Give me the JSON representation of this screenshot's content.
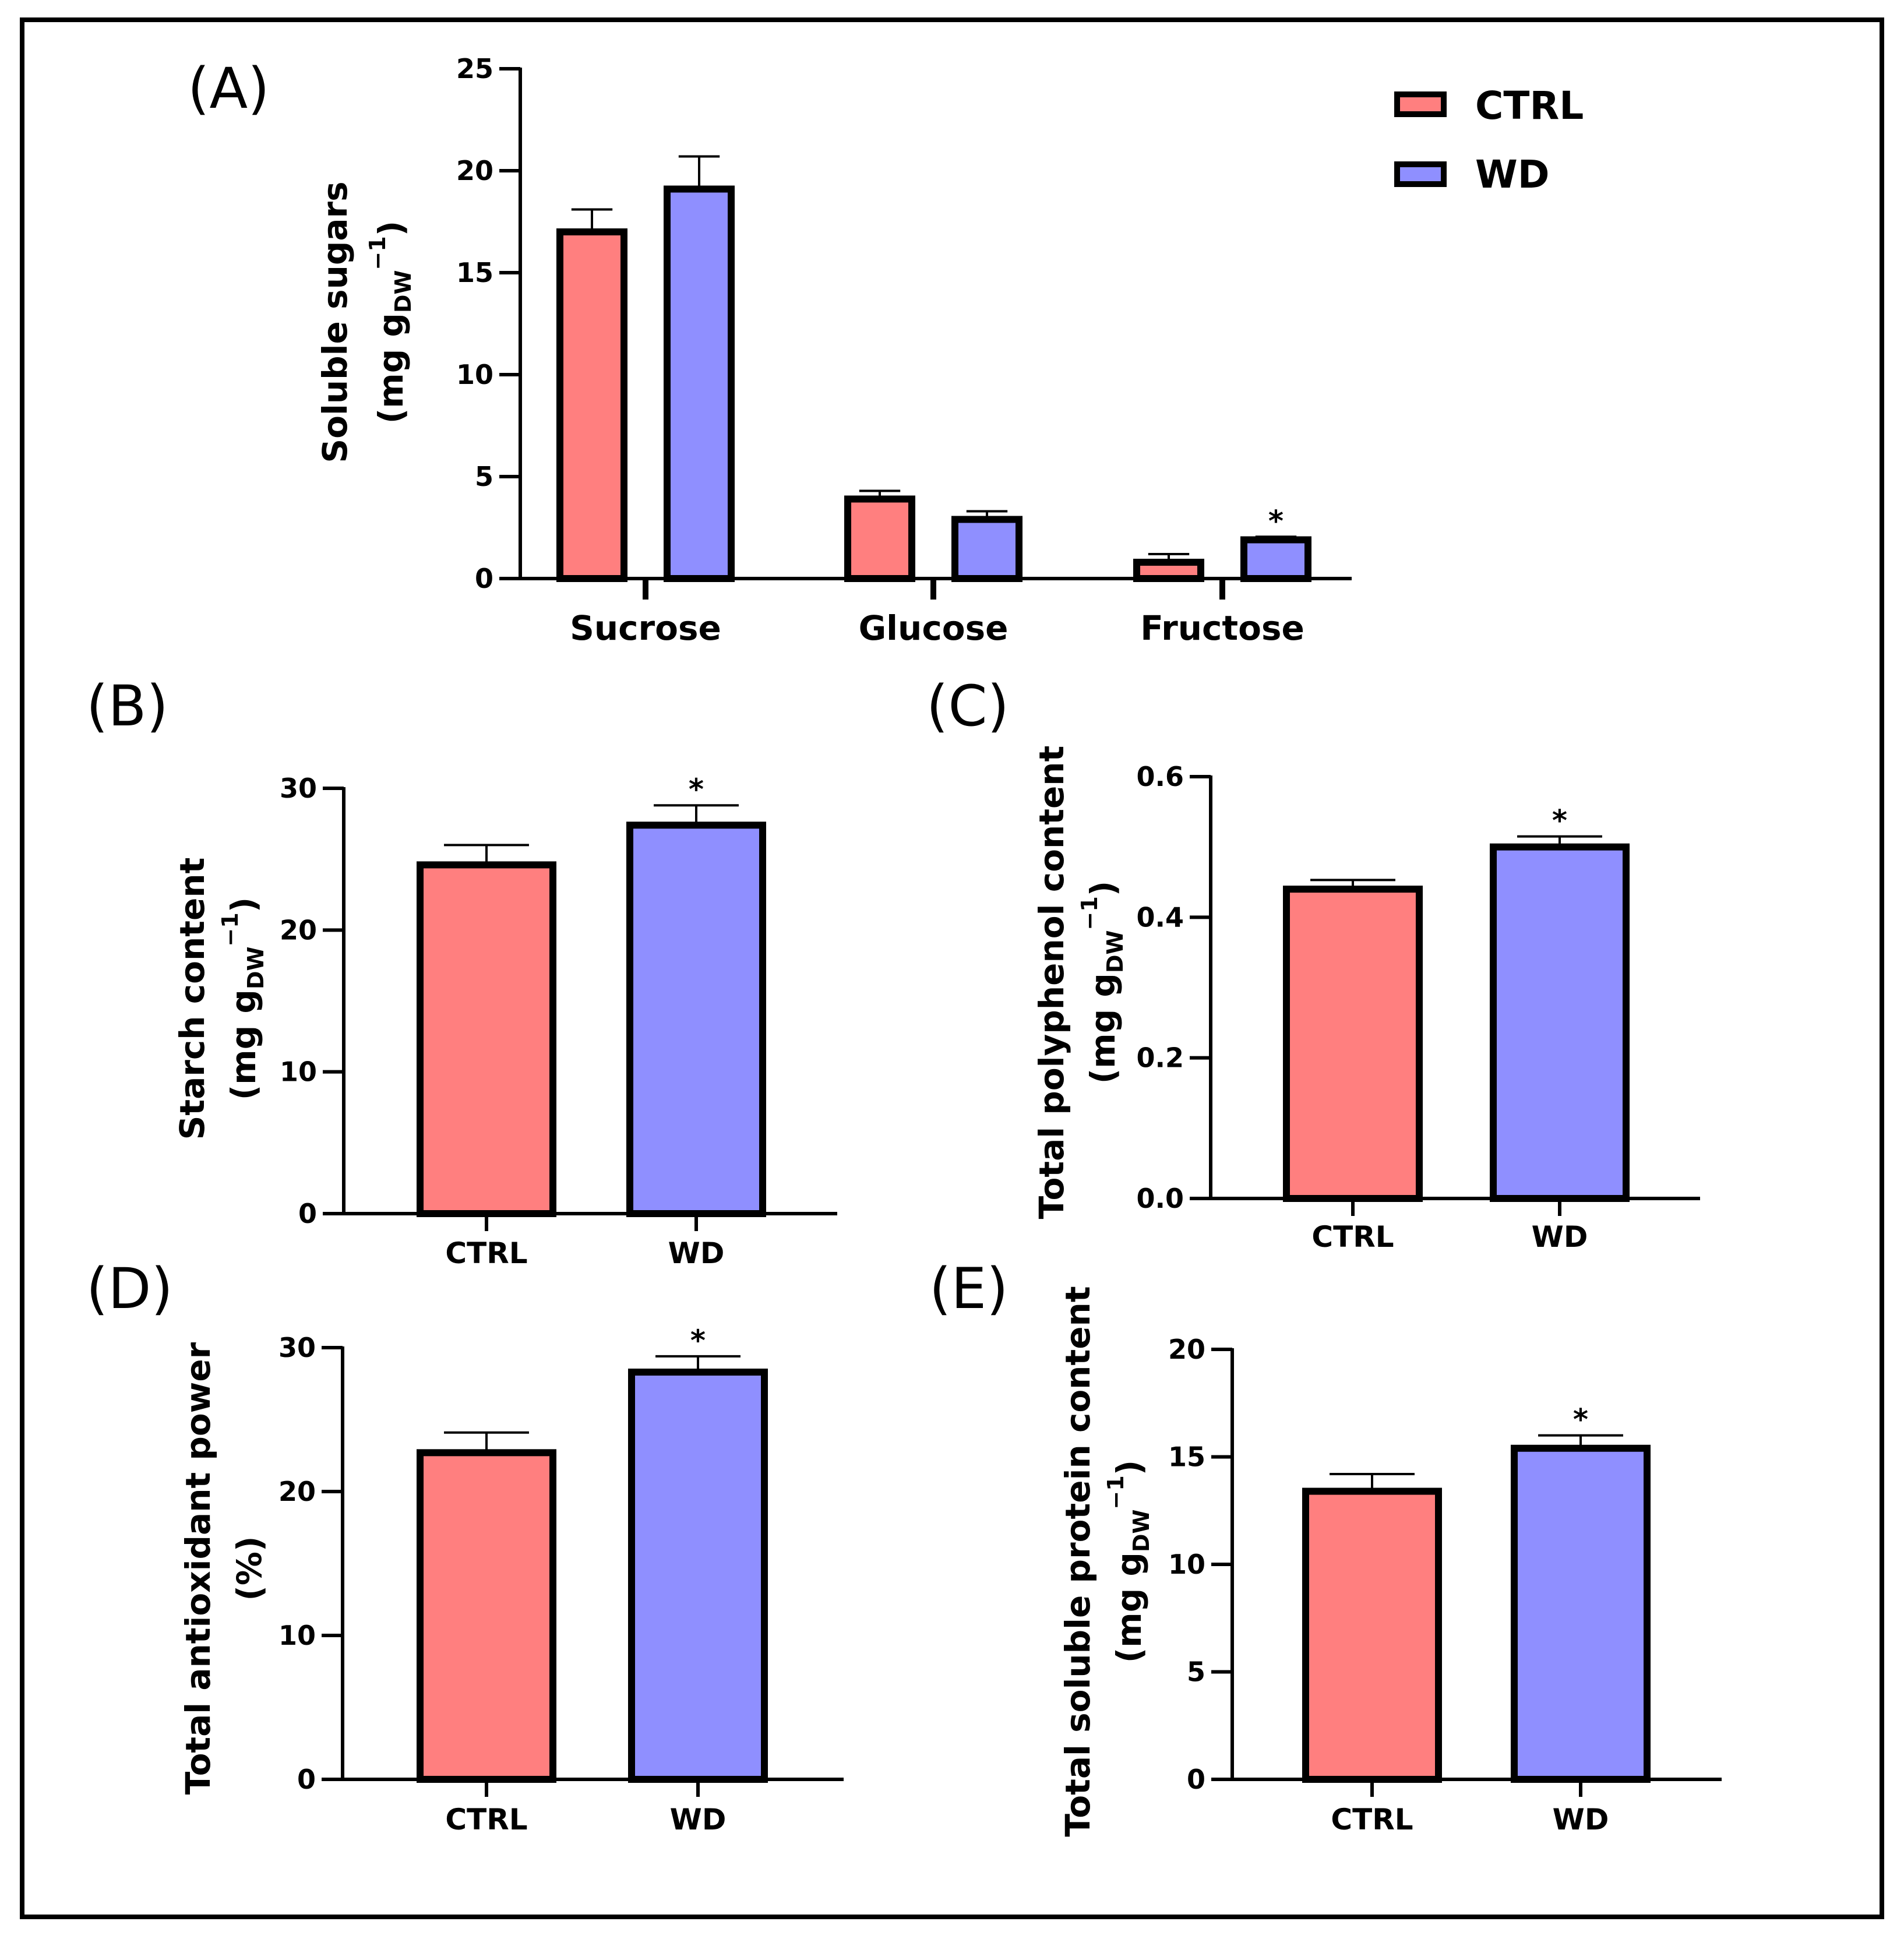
{
  "colors": {
    "ctrl": "#ff7f7f",
    "wd": "#8f8fff",
    "stroke": "#000000"
  },
  "legend": [
    {
      "label": "CTRL",
      "color": "#ff7f7f"
    },
    {
      "label": "WD",
      "color": "#8f8fff"
    }
  ],
  "chart_data": [
    {
      "panel": "(A)",
      "type": "bar",
      "categories": [
        "Sucrose",
        "Glucose",
        "Fructose"
      ],
      "series": [
        {
          "name": "CTRL",
          "values": [
            17.0,
            3.9,
            0.8
          ],
          "errors": [
            1.1,
            0.4,
            0.4
          ],
          "significant": [
            false,
            false,
            false
          ]
        },
        {
          "name": "WD",
          "values": [
            19.1,
            2.9,
            1.9
          ],
          "errors": [
            1.6,
            0.4,
            0.15
          ],
          "significant": [
            false,
            false,
            true
          ]
        }
      ],
      "ylabel_main": "Soluble sugars",
      "ylabel_units": "(mg g",
      "ylabel_subscript": "DW",
      "ylabel_superscript": "−1",
      "ylabel_close": ")",
      "ylim": [
        0,
        25
      ],
      "yticks": [
        "0",
        "5",
        "10",
        "15",
        "20",
        "25"
      ],
      "significance_mark": "*"
    },
    {
      "panel": "(B)",
      "type": "bar",
      "categories": [
        "CTRL",
        "WD"
      ],
      "values": [
        24.6,
        27.4
      ],
      "errors": [
        1.4,
        1.4
      ],
      "significant": [
        false,
        true
      ],
      "ylabel_main": "Starch content",
      "ylabel_units": "(mg g",
      "ylabel_subscript": "DW",
      "ylabel_superscript": "−1",
      "ylabel_close": ")",
      "ylim": [
        0,
        30
      ],
      "yticks": [
        "0",
        "10",
        "20",
        "30"
      ],
      "significance_mark": "*"
    },
    {
      "panel": "(C)",
      "type": "bar",
      "categories": [
        "CTRL",
        "WD"
      ],
      "values": [
        0.44,
        0.5
      ],
      "errors": [
        0.013,
        0.015
      ],
      "significant": [
        false,
        true
      ],
      "ylabel_main": "Total polyphenol content",
      "ylabel_units": "(mg g",
      "ylabel_subscript": "DW",
      "ylabel_superscript": "−1",
      "ylabel_close": ")",
      "ylim": [
        0,
        0.6
      ],
      "yticks": [
        "0.0",
        "0.2",
        "0.4",
        "0.6"
      ],
      "significance_mark": "*"
    },
    {
      "panel": "(D)",
      "type": "bar",
      "categories": [
        "CTRL",
        "WD"
      ],
      "values": [
        22.7,
        28.3
      ],
      "errors": [
        1.4,
        1.1
      ],
      "significant": [
        false,
        true
      ],
      "ylabel_main": "Total antioxidant power",
      "ylabel_units": "(%)",
      "ylabel_subscript": "",
      "ylabel_superscript": "",
      "ylabel_close": "",
      "ylim": [
        0,
        30
      ],
      "yticks": [
        "0",
        "10",
        "20",
        "30"
      ],
      "significance_mark": "*"
    },
    {
      "panel": "(E)",
      "type": "bar",
      "categories": [
        "CTRL",
        "WD"
      ],
      "values": [
        13.4,
        15.4
      ],
      "errors": [
        0.8,
        0.6
      ],
      "significant": [
        false,
        true
      ],
      "ylabel_main": "Total soluble protein  content",
      "ylabel_units": "(mg g",
      "ylabel_subscript": "DW",
      "ylabel_superscript": "−1",
      "ylabel_close": ")",
      "ylim": [
        0,
        20
      ],
      "yticks": [
        "0",
        "5",
        "10",
        "15",
        "20"
      ],
      "significance_mark": "*"
    }
  ]
}
